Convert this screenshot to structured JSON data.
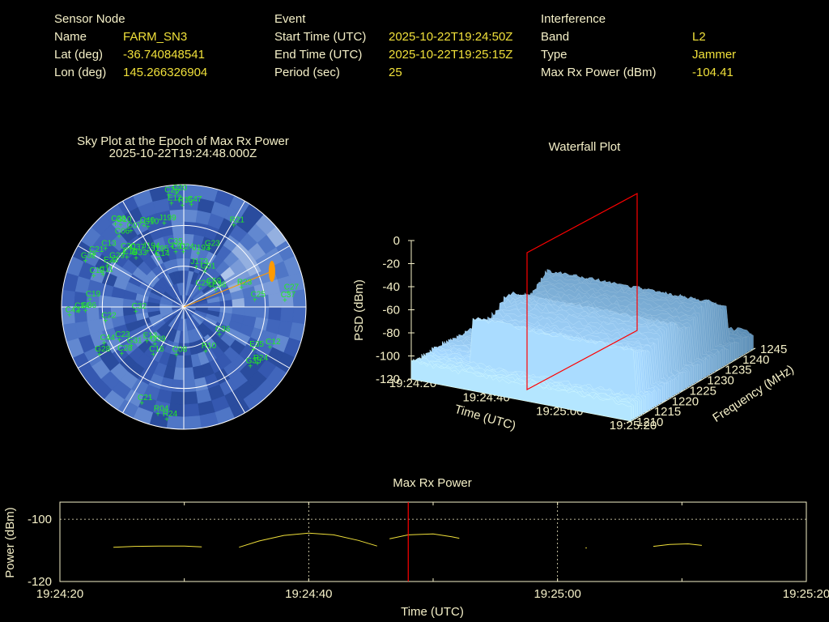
{
  "header": {
    "sensor": {
      "heading": "Sensor Node",
      "rows": [
        {
          "label": "Name",
          "value": "FARM_SN3"
        },
        {
          "label": "Lat (deg)",
          "value": "-36.740848541"
        },
        {
          "label": "Lon (deg)",
          "value": "145.266326904"
        }
      ]
    },
    "event": {
      "heading": "Event",
      "rows": [
        {
          "label": "Start Time (UTC)",
          "value": "2025-10-22T19:24:50Z"
        },
        {
          "label": "End Time (UTC)",
          "value": "2025-10-22T19:25:15Z"
        },
        {
          "label": "Period (sec)",
          "value": "25"
        }
      ]
    },
    "interference": {
      "heading": "Interference",
      "rows": [
        {
          "label": "Band",
          "value": "L2"
        },
        {
          "label": "Type",
          "value": "Jammer"
        },
        {
          "label": "Max Rx Power (dBm)",
          "value": "-104.41"
        }
      ]
    }
  },
  "colors": {
    "label": "#f5f0c8",
    "value": "#f0e03a",
    "sat": "#22ee22",
    "marker": "#ff0000",
    "power_line": "#f0e03a",
    "jammer": "#ff9a00"
  },
  "skyplot": {
    "title": "Sky Plot at the Epoch of Max Rx Power",
    "subtitle": "2025-10-22T19:24:48.000Z",
    "sats": [
      {
        "id": "C26",
        "az": -6,
        "el": 7
      },
      {
        "id": "C20",
        "az": -2,
        "el": 6
      },
      {
        "id": "E12",
        "az": -5,
        "el": 13
      },
      {
        "id": "R15",
        "az": 1,
        "el": 15
      },
      {
        "id": "C47",
        "az": 6,
        "el": 14
      },
      {
        "id": "C38",
        "az": -38,
        "el": 12
      },
      {
        "id": "G10",
        "az": -36,
        "el": 15
      },
      {
        "id": "C06",
        "az": -41,
        "el": 21
      },
      {
        "id": "C07",
        "az": -33,
        "el": 23
      },
      {
        "id": "C40",
        "az": -24,
        "el": 24
      },
      {
        "id": "G10",
        "az": -22,
        "el": 26
      },
      {
        "id": "J199",
        "az": -11,
        "el": 27
      },
      {
        "id": "R21",
        "az": 33,
        "el": 18
      },
      {
        "id": "C13",
        "az": -52,
        "el": 20
      },
      {
        "id": "C21",
        "az": -59,
        "el": 15
      },
      {
        "id": "G32",
        "az": -64,
        "el": 12
      },
      {
        "id": "G29",
        "az": -55,
        "el": 30
      },
      {
        "id": "E23",
        "az": -60,
        "el": 28
      },
      {
        "id": "C11",
        "az": -67,
        "el": 28
      },
      {
        "id": "C12",
        "az": -70,
        "el": 22
      },
      {
        "id": "C30",
        "az": -45,
        "el": 32
      },
      {
        "id": "C19",
        "az": -47,
        "el": 36
      },
      {
        "id": "G33",
        "az": -42,
        "el": 41
      },
      {
        "id": "C37",
        "az": -40,
        "el": 37
      },
      {
        "id": "J194",
        "az": -30,
        "el": 42
      },
      {
        "id": "J195",
        "az": -24,
        "el": 47
      },
      {
        "id": "C14",
        "az": -24,
        "el": 51
      },
      {
        "id": "C35",
        "az": -8,
        "el": 45
      },
      {
        "id": "C01",
        "az": -5,
        "el": 49
      },
      {
        "id": "C24",
        "az": 3,
        "el": 49
      },
      {
        "id": "J193",
        "az": 18,
        "el": 48
      },
      {
        "id": "G23",
        "az": 26,
        "el": 42
      },
      {
        "id": "J173",
        "az": 21,
        "el": 58
      },
      {
        "id": "G01",
        "az": 34,
        "el": 58
      },
      {
        "id": "C29",
        "az": 45,
        "el": 70
      },
      {
        "id": "C59",
        "az": 55,
        "el": 63
      },
      {
        "id": "E36",
        "az": 64,
        "el": 61
      },
      {
        "id": "R23",
        "az": 72,
        "el": 43
      },
      {
        "id": "C27",
        "az": 82,
        "el": 10
      },
      {
        "id": "C37",
        "az": 86,
        "el": 13
      },
      {
        "id": "C25",
        "az": 84,
        "el": 35
      },
      {
        "id": "C19",
        "az": -85,
        "el": 23
      },
      {
        "id": "C42",
        "az": -94,
        "el": 8
      },
      {
        "id": "C34",
        "az": -92,
        "el": 15
      },
      {
        "id": "G36",
        "az": -92,
        "el": 20
      },
      {
        "id": "C22",
        "az": -100,
        "el": 34
      },
      {
        "id": "C32",
        "az": -95,
        "el": 57
      },
      {
        "id": "G28",
        "az": -120,
        "el": 21
      },
      {
        "id": "C44",
        "az": -115,
        "el": 28
      },
      {
        "id": "G31",
        "az": -128,
        "el": 44
      },
      {
        "id": "E13",
        "az": -135,
        "el": 55
      },
      {
        "id": "G39",
        "az": -145,
        "el": 57
      },
      {
        "id": "C16",
        "az": -150,
        "el": 50
      },
      {
        "id": "C28",
        "az": -128,
        "el": 35
      },
      {
        "id": "C23",
        "az": -118,
        "el": 39
      },
      {
        "id": "C36",
        "az": 125,
        "el": 55
      },
      {
        "id": "R10",
        "az": 150,
        "el": 53
      },
      {
        "id": "C08",
        "az": -175,
        "el": 55
      },
      {
        "id": "E35",
        "az": 120,
        "el": 28
      },
      {
        "id": "C12",
        "az": 114,
        "el": 18
      },
      {
        "id": "R24",
        "az": 126,
        "el": 20
      },
      {
        "id": "G35",
        "az": 130,
        "el": 23
      },
      {
        "id": "C21",
        "az": -158,
        "el": 14
      },
      {
        "id": "R04",
        "az": -168,
        "el": 10
      },
      {
        "id": "R24",
        "az": -173,
        "el": 7
      }
    ],
    "jammer_az": 68,
    "jammer_el": 20
  },
  "waterfall": {
    "title": "Waterfall Plot",
    "zlabel": "PSD (dBm)",
    "xlabel": "Time (UTC)",
    "ylabel": "Frequency (MHz)",
    "zticks": [
      "0",
      "-20",
      "-40",
      "-60",
      "-80",
      "-100",
      "-120"
    ],
    "tticks": [
      "19:24:20",
      "19:24:40",
      "19:25:00",
      "19:25:20"
    ],
    "fticks": [
      "1210",
      "1215",
      "1220",
      "1225",
      "1230",
      "1235",
      "1240",
      "1245"
    ]
  },
  "chart_data": [
    {
      "type": "line",
      "title": "Max Rx Power",
      "xlabel": "Time (UTC)",
      "ylabel": "Power (dBm)",
      "xticks": [
        "19:24:20",
        "19:24:40",
        "19:25:00",
        "19:25:20"
      ],
      "yticks": [
        "-100",
        "-120"
      ],
      "xlim_seconds": [
        0,
        60
      ],
      "ylim": [
        -120,
        -94.5
      ],
      "marker_time": "19:24:48",
      "series": [
        {
          "segments": [
            [
              [
                4.3,
                -109.0
              ],
              [
                6,
                -108.7
              ],
              [
                8,
                -108.6
              ],
              [
                10,
                -108.6
              ],
              [
                11.4,
                -108.9
              ]
            ],
            [
              [
                14.4,
                -109.0
              ],
              [
                16,
                -107.0
              ],
              [
                18,
                -105.2
              ],
              [
                20,
                -104.45
              ],
              [
                22,
                -105.0
              ],
              [
                24,
                -106.8
              ],
              [
                25.5,
                -108.6
              ]
            ],
            [
              [
                26.5,
                -106.3
              ],
              [
                28,
                -105.0
              ],
              [
                30,
                -104.7
              ],
              [
                31.5,
                -105.6
              ],
              [
                32.1,
                -106.1
              ]
            ],
            [
              [
                47.7,
                -108.7
              ],
              [
                49,
                -108.1
              ],
              [
                50.5,
                -107.9
              ],
              [
                51.6,
                -108.4
              ]
            ]
          ]
        }
      ]
    }
  ]
}
